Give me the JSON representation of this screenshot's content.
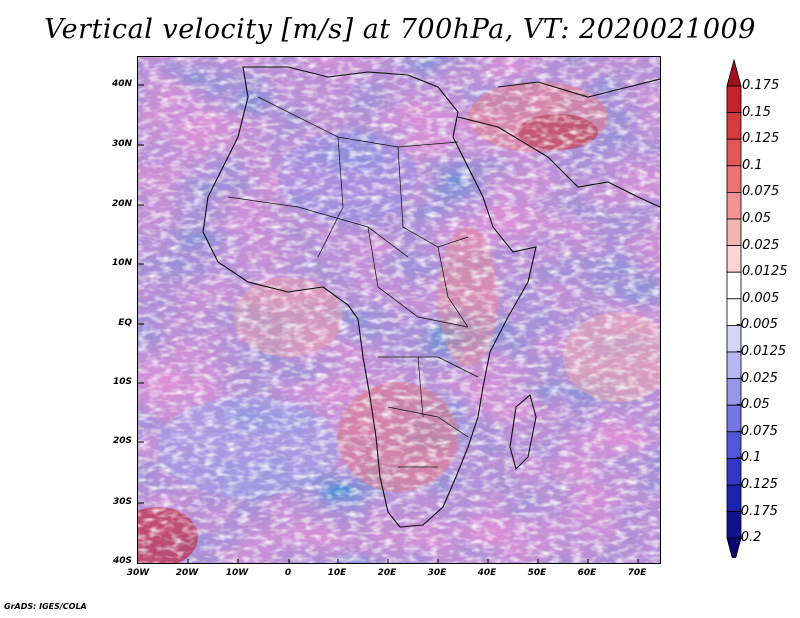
{
  "title": "Vertical velocity [m/s] at 700hPa, VT: 2020021009",
  "footer": "GrADS: IGES/COLA",
  "map": {
    "lat_labels": [
      "40N",
      "30N",
      "20N",
      "10N",
      "EQ",
      "10S",
      "20S",
      "30S",
      "40S"
    ],
    "lon_labels": [
      "30W",
      "20W",
      "10W",
      "0",
      "10E",
      "20E",
      "30E",
      "40E",
      "50E",
      "60E",
      "70E"
    ]
  },
  "colorbar": {
    "labels": [
      "0.175",
      "0.15",
      "0.125",
      "0.1",
      "0.075",
      "0.05",
      "0.025",
      "0.0125",
      "0.005",
      "-0.005",
      "-0.0125",
      "-0.025",
      "-0.05",
      "-0.075",
      "-0.1",
      "-0.125",
      "-0.175",
      "-0.2"
    ],
    "colors": [
      "#a3121c",
      "#c4232b",
      "#d63a3f",
      "#e45658",
      "#ec7474",
      "#f29494",
      "#f7b4b4",
      "#fbd4d4",
      "#ffffff",
      "#ffffff",
      "#d4d6f7",
      "#b5b8f2",
      "#9597eb",
      "#7476e3",
      "#5456d8",
      "#3436c6",
      "#1e20ae",
      "#100f8f",
      "#0a0770"
    ]
  }
}
